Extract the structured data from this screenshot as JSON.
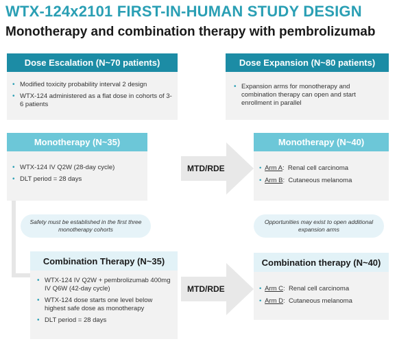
{
  "title": "WTX-124x2101 FIRST-IN-HUMAN STUDY DESIGN",
  "subtitle": "Monotherapy and combination therapy with pembrolizumab",
  "dose_escalation": {
    "header": "Dose Escalation (N~70 patients)",
    "bullets": [
      "Modified toxicity probability interval 2 design",
      "WTX-124 administered as a flat dose in cohorts of 3-6 patients"
    ]
  },
  "dose_expansion": {
    "header": "Dose Expansion (N~80 patients)",
    "bullets": [
      "Expansion arms for monotherapy and combination therapy can open and start enrollment in parallel"
    ]
  },
  "mono_escalation": {
    "header": "Monotherapy (N~35)",
    "bullets": [
      "WTX-124 IV Q2W (28-day cycle)",
      "DLT period = 28 days"
    ]
  },
  "mono_expansion": {
    "header": "Monotherapy (N~40)",
    "arms": [
      {
        "key": "Arm A",
        "label": "Renal cell carcinoma"
      },
      {
        "key": "Arm B",
        "label": "Cutaneous melanoma"
      }
    ]
  },
  "combo_escalation": {
    "header": "Combination Therapy (N~35)",
    "bullets": [
      "WTX-124 IV Q2W + pembrolizumab 400mg IV Q6W (42-day cycle)",
      "WTX-124 dose starts one level below highest safe dose as monotherapy",
      "DLT period = 28 days"
    ]
  },
  "combo_expansion": {
    "header": "Combination therapy (N~40)",
    "arms": [
      {
        "key": "Arm C",
        "label": "Renal cell carcinoma"
      },
      {
        "key": "Arm D",
        "label": "Cutaneous melanoma"
      }
    ]
  },
  "arrow_labels": {
    "top": "MTD/RDE",
    "bottom": "MTD/RDE"
  },
  "notes": {
    "safety": "Safety must be established in the first three monotherapy cohorts",
    "opportunities": "Opportunities may exist to open additional expansion arms"
  },
  "colors": {
    "title": "#2a9fb4",
    "header_dark": "#1c8ca5",
    "header_light": "#6cc7d8",
    "header_pale": "#e2f2f7",
    "box_bg": "#f2f2f2",
    "arrow": "#e8e8e8"
  }
}
